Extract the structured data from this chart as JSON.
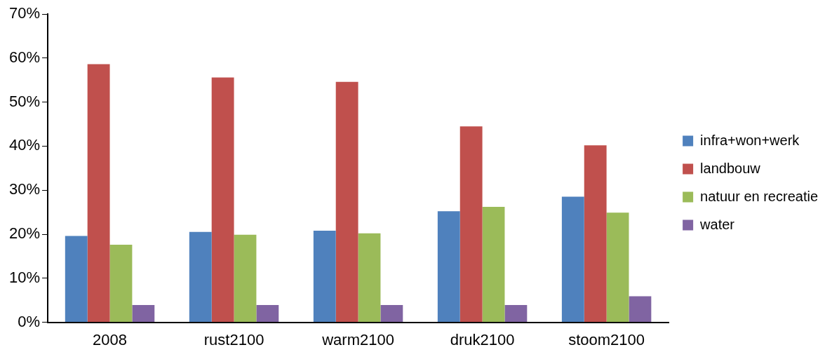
{
  "chart_data": {
    "type": "bar",
    "categories": [
      "2008",
      "rust2100",
      "warm2100",
      "druk2100",
      "stoom2100"
    ],
    "series": [
      {
        "name": "infra+won+werk",
        "color": "#4f81bd",
        "values": [
          19.6,
          20.5,
          20.8,
          25.2,
          28.5
        ]
      },
      {
        "name": "landbouw",
        "color": "#c0504d",
        "values": [
          58.6,
          55.6,
          54.6,
          44.5,
          40.2
        ]
      },
      {
        "name": "natuur en recreatie",
        "color": "#9bbb59",
        "values": [
          17.6,
          19.9,
          20.2,
          26.2,
          24.9
        ]
      },
      {
        "name": "water",
        "color": "#8064a2",
        "values": [
          3.9,
          3.9,
          3.9,
          3.9,
          5.9
        ]
      }
    ],
    "ylim": [
      0,
      70
    ],
    "yticks": [
      {
        "value": 0,
        "label": "0%"
      },
      {
        "value": 10,
        "label": "10%"
      },
      {
        "value": 20,
        "label": "20%"
      },
      {
        "value": 30,
        "label": "30%"
      },
      {
        "value": 40,
        "label": "40%"
      },
      {
        "value": 50,
        "label": "50%"
      },
      {
        "value": 60,
        "label": "60%"
      },
      {
        "value": 70,
        "label": "70%"
      }
    ],
    "grid": false,
    "legend": "right"
  }
}
